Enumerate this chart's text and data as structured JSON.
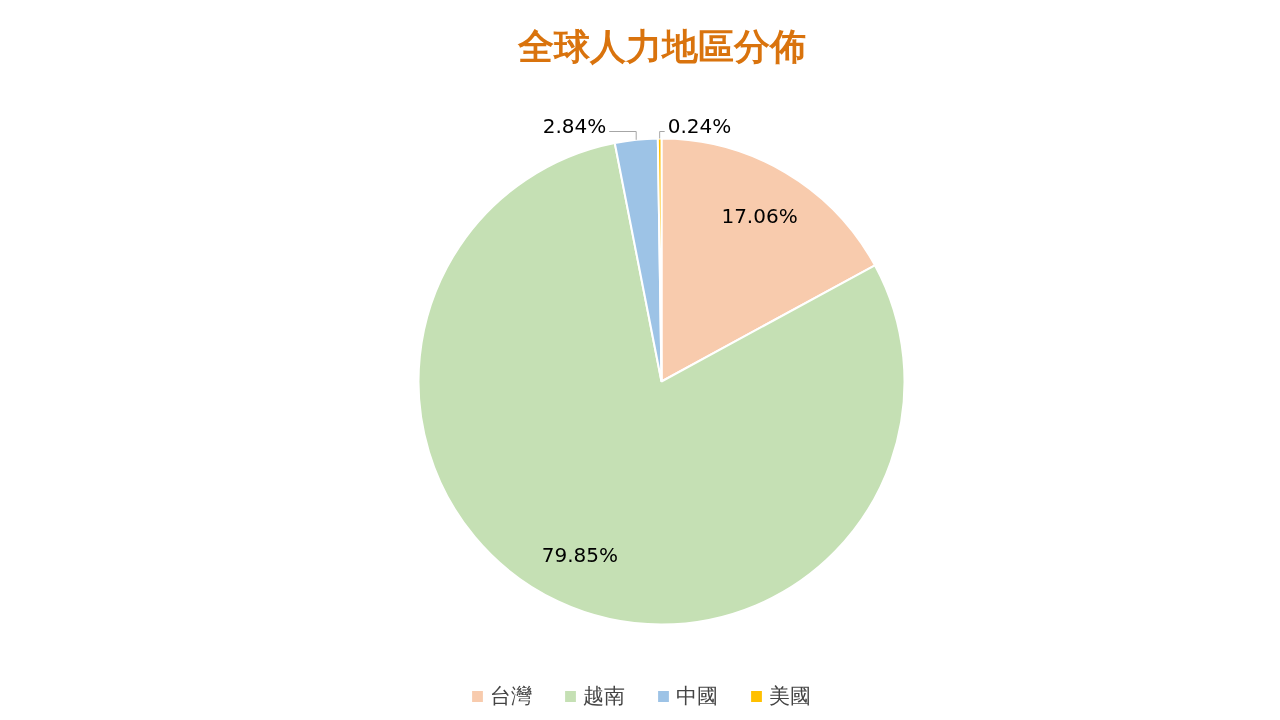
{
  "chart_data": {
    "type": "pie",
    "title": "全球人力地區分佈",
    "categories": [
      "台灣",
      "越南",
      "中國",
      "美國"
    ],
    "values": [
      17.06,
      79.85,
      2.84,
      0.24
    ],
    "colors": [
      "#f8cbad",
      "#c5e0b4",
      "#9dc3e6",
      "#ffc000"
    ],
    "value_labels": [
      "17.06%",
      "79.85%",
      "2.84%",
      "0.24%"
    ],
    "legend": "bottom"
  }
}
